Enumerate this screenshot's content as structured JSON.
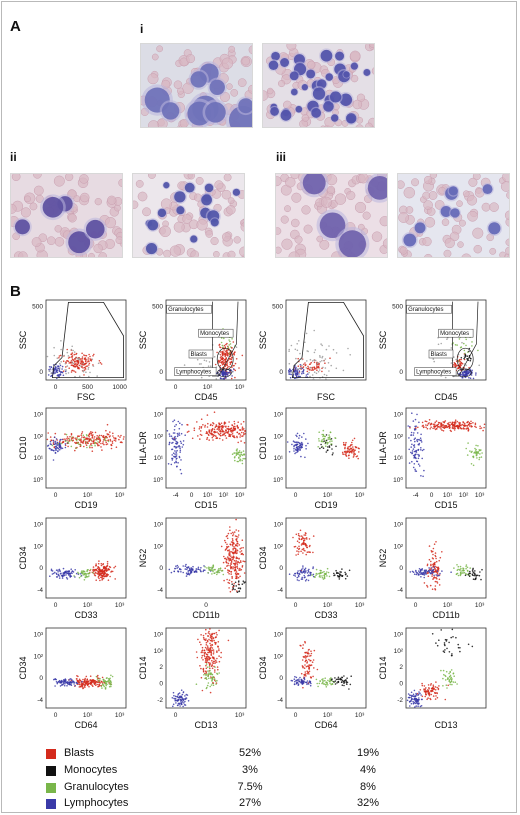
{
  "panel_a": {
    "letter": "A",
    "sub_labels": [
      "i",
      "ii",
      "iii"
    ],
    "images": [
      "cytospin-i-left",
      "cytospin-i-right",
      "cytospin-ii-left",
      "cytospin-ii-right",
      "cytospin-iii-left",
      "cytospin-iii-right"
    ]
  },
  "panel_b": {
    "letter": "B",
    "colors": {
      "blasts": "#d42a1c",
      "monocytes": "#111111",
      "granulocytes": "#79b64a",
      "lymphocytes": "#3a3aa8",
      "debris": "#9a9a9a"
    },
    "gate_labels": [
      "Granulocytes",
      "Monocytes",
      "Blasts",
      "Lymphocytes"
    ],
    "plots": [
      {
        "id": "p1a-fsc-ssc",
        "xlabel": "FSC",
        "ylabel": "SSC",
        "xticks": [
          "0",
          "500",
          "1000"
        ],
        "yticks": [
          "0",
          "500"
        ]
      },
      {
        "id": "p1b-cd45-ssc",
        "xlabel": "CD45",
        "ylabel": "SSC",
        "xticks": [
          "0",
          "10²",
          "10³"
        ],
        "yticks": [
          "0",
          "500"
        ]
      },
      {
        "id": "p2a-fsc-ssc",
        "xlabel": "FSC",
        "ylabel": "SSC",
        "xticks": [],
        "yticks": [
          "0",
          "500"
        ]
      },
      {
        "id": "p2b-cd45-ssc",
        "xlabel": "CD45",
        "ylabel": "SSC",
        "xticks": [],
        "yticks": [
          "0",
          "500"
        ]
      },
      {
        "id": "p1-cd19-cd10",
        "xlabel": "CD19",
        "ylabel": "CD10",
        "xticks": [
          "0",
          "10²",
          "10³"
        ],
        "yticks": [
          "10⁰",
          "10¹",
          "10²",
          "10³"
        ]
      },
      {
        "id": "p1-cd15-hladr",
        "xlabel": "CD15",
        "ylabel": "HLA-DR",
        "xticks": [
          "-4",
          "0",
          "10¹",
          "10²",
          "10³"
        ],
        "yticks": [
          "10⁰",
          "10¹",
          "10²",
          "10³"
        ]
      },
      {
        "id": "p2-cd19-cd10",
        "xlabel": "CD19",
        "ylabel": "CD10",
        "xticks": [
          "0",
          "10²",
          "10³"
        ],
        "yticks": [
          "10⁰",
          "10¹",
          "10²",
          "10³"
        ]
      },
      {
        "id": "p2-cd15-hladr",
        "xlabel": "CD15",
        "ylabel": "HLA-DR",
        "xticks": [
          "-4",
          "0",
          "10¹",
          "10²",
          "10³"
        ],
        "yticks": [
          "10⁰",
          "10¹",
          "10²",
          "10³"
        ]
      },
      {
        "id": "p1-cd33-cd34",
        "xlabel": "CD33",
        "ylabel": "CD34",
        "xticks": [
          "0",
          "10²",
          "10³"
        ],
        "yticks": [
          "-4",
          "0",
          "10²",
          "10³"
        ]
      },
      {
        "id": "p1-cd11b-ng2",
        "xlabel": "CD11b",
        "ylabel": "NG2",
        "xticks": [
          "0"
        ],
        "yticks": [
          "-4",
          "0",
          "10²",
          "10³"
        ]
      },
      {
        "id": "p2-cd33-cd34",
        "xlabel": "CD33",
        "ylabel": "CD34",
        "xticks": [
          "0",
          "10²",
          "10³"
        ],
        "yticks": [
          "-4",
          "0",
          "10²",
          "10³"
        ]
      },
      {
        "id": "p2-cd11b-ng2",
        "xlabel": "CD11b",
        "ylabel": "NG2",
        "xticks": [
          "0",
          "10²",
          "10³"
        ],
        "yticks": [
          "-4",
          "0",
          "10²",
          "10³"
        ]
      },
      {
        "id": "p1-cd64-cd34",
        "xlabel": "CD64",
        "ylabel": "CD34",
        "xticks": [
          "0",
          "10²",
          "10³"
        ],
        "yticks": [
          "-4",
          "0",
          "10²",
          "10³"
        ]
      },
      {
        "id": "p1-cd13-cd14",
        "xlabel": "CD13",
        "ylabel": "CD14",
        "xticks": [
          "0",
          "10³"
        ],
        "yticks": [
          "-2",
          "0",
          "2",
          "10²",
          "10³"
        ]
      },
      {
        "id": "p2-cd64-cd34",
        "xlabel": "CD64",
        "ylabel": "CD34",
        "xticks": [
          "0",
          "10²",
          "10³"
        ],
        "yticks": [
          "-4",
          "0",
          "10²",
          "10³"
        ]
      },
      {
        "id": "p2-cd13-cd14",
        "xlabel": "CD13",
        "ylabel": "CD14",
        "xticks": [],
        "yticks": [
          "-2",
          "0",
          "2",
          "10²",
          "10³"
        ]
      }
    ],
    "legend": {
      "rows": [
        {
          "label": "Blasts",
          "v1": "52%",
          "v2": "19%",
          "color": "#d42a1c"
        },
        {
          "label": "Monocytes",
          "v1": "3%",
          "v2": "4%",
          "color": "#111111"
        },
        {
          "label": "Granulocytes",
          "v1": "7.5%",
          "v2": "8%",
          "color": "#79b64a"
        },
        {
          "label": "Lymphocytes",
          "v1": "27%",
          "v2": "32%",
          "color": "#3a3aa8"
        }
      ]
    }
  }
}
